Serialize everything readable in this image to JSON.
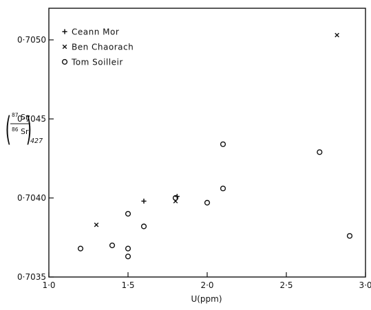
{
  "chart_data": {
    "type": "scatter",
    "title": "",
    "xlabel": "U(ppm)",
    "ylabel": {
      "sr87_mass": "87",
      "sr86_mass": "86",
      "element": "Sr",
      "age_subscript": "427"
    },
    "xlim": [
      1.0,
      3.0
    ],
    "ylim": [
      0.7035,
      0.7052
    ],
    "x_ticks": [
      {
        "value": 1.0,
        "label": "1·0"
      },
      {
        "value": 1.5,
        "label": "1·5"
      },
      {
        "value": 2.0,
        "label": "2·0"
      },
      {
        "value": 2.5,
        "label": "2·5"
      },
      {
        "value": 3.0,
        "label": "3·0"
      }
    ],
    "y_ticks": [
      {
        "value": 0.7035,
        "label": "0·7035"
      },
      {
        "value": 0.704,
        "label": "0·7040"
      },
      {
        "value": 0.7045,
        "label": "0·7045"
      },
      {
        "value": 0.705,
        "label": "0·7050"
      }
    ],
    "grid": false,
    "legend_position": "top-left",
    "series": [
      {
        "name": "Ceann Mor",
        "marker": "plus",
        "points": [
          {
            "x": 1.6,
            "y": 0.70398
          },
          {
            "x": 1.81,
            "y": 0.70401
          }
        ]
      },
      {
        "name": "Ben Chaorach",
        "marker": "cross",
        "points": [
          {
            "x": 1.3,
            "y": 0.70383
          },
          {
            "x": 1.8,
            "y": 0.70398
          },
          {
            "x": 2.82,
            "y": 0.70503
          }
        ]
      },
      {
        "name": "Tom Soilleir",
        "marker": "circle",
        "points": [
          {
            "x": 1.2,
            "y": 0.70368
          },
          {
            "x": 1.4,
            "y": 0.7037
          },
          {
            "x": 1.5,
            "y": 0.7039
          },
          {
            "x": 1.5,
            "y": 0.70368
          },
          {
            "x": 1.5,
            "y": 0.70363
          },
          {
            "x": 1.6,
            "y": 0.70382
          },
          {
            "x": 1.8,
            "y": 0.704
          },
          {
            "x": 2.0,
            "y": 0.70397
          },
          {
            "x": 2.1,
            "y": 0.70434
          },
          {
            "x": 2.1,
            "y": 0.70406
          },
          {
            "x": 2.71,
            "y": 0.70429
          },
          {
            "x": 2.9,
            "y": 0.70376
          }
        ]
      }
    ]
  }
}
